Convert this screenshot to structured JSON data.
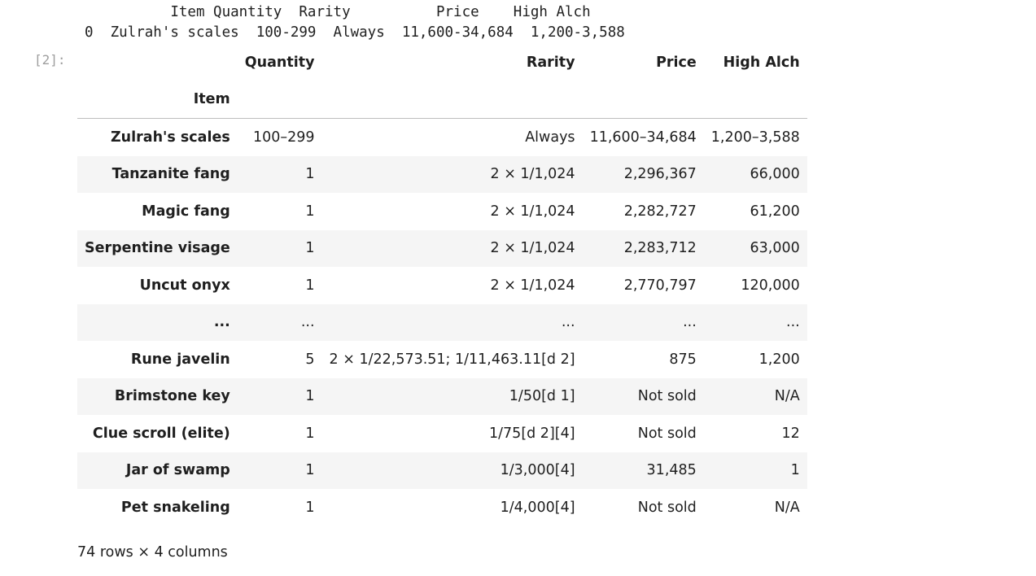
{
  "stdout": {
    "line1": "          Item Quantity  Rarity          Price    High Alch",
    "line2": "0  Zulrah's scales  100-299  Always  11,600-34,684  1,200-3,588"
  },
  "prompt": "[2]:",
  "table": {
    "columns": [
      "Quantity",
      "Rarity",
      "Price",
      "High Alch"
    ],
    "index_name": "Item",
    "rows": [
      {
        "item": "Zulrah's scales",
        "quantity": "100–299",
        "rarity": "Always",
        "price": "11,600–34,684",
        "high_alch": "1,200–3,588"
      },
      {
        "item": "Tanzanite fang",
        "quantity": "1",
        "rarity": "2 × 1/1,024",
        "price": "2,296,367",
        "high_alch": "66,000"
      },
      {
        "item": "Magic fang",
        "quantity": "1",
        "rarity": "2 × 1/1,024",
        "price": "2,282,727",
        "high_alch": "61,200"
      },
      {
        "item": "Serpentine visage",
        "quantity": "1",
        "rarity": "2 × 1/1,024",
        "price": "2,283,712",
        "high_alch": "63,000"
      },
      {
        "item": "Uncut onyx",
        "quantity": "1",
        "rarity": "2 × 1/1,024",
        "price": "2,770,797",
        "high_alch": "120,000"
      },
      {
        "item": "...",
        "quantity": "...",
        "rarity": "...",
        "price": "...",
        "high_alch": "..."
      },
      {
        "item": "Rune javelin",
        "quantity": "5",
        "rarity": "2 × 1/22,573.51; 1/11,463.11[d 2]",
        "price": "875",
        "high_alch": "1,200"
      },
      {
        "item": "Brimstone key",
        "quantity": "1",
        "rarity": "1/50[d 1]",
        "price": "Not sold",
        "high_alch": "N/A"
      },
      {
        "item": "Clue scroll (elite)",
        "quantity": "1",
        "rarity": "1/75[d 2][4]",
        "price": "Not sold",
        "high_alch": "12"
      },
      {
        "item": "Jar of swamp",
        "quantity": "1",
        "rarity": "1/3,000[4]",
        "price": "31,485",
        "high_alch": "1"
      },
      {
        "item": "Pet snakeling",
        "quantity": "1",
        "rarity": "1/4,000[4]",
        "price": "Not sold",
        "high_alch": "N/A"
      }
    ]
  },
  "footer": "74 rows × 4 columns"
}
